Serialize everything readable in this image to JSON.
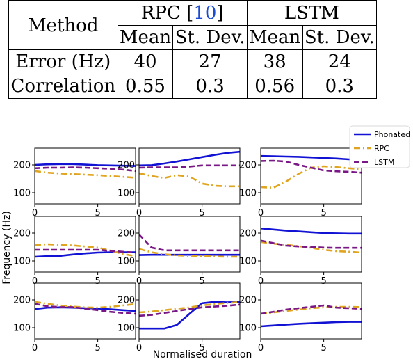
{
  "table": {
    "method_label": "Method",
    "groups": [
      {
        "name": "RPC [",
        "ref": "10",
        "suffix": "]"
      },
      {
        "name": "LSTM",
        "ref": "",
        "suffix": ""
      }
    ],
    "subheaders": [
      "Mean",
      "St. Dev.",
      "Mean",
      "St. Dev."
    ],
    "rows": [
      {
        "label": "Error (Hz)",
        "values": [
          "40",
          "27",
          "38",
          "24"
        ]
      },
      {
        "label": "Correlation",
        "values": [
          "0.55",
          "0.3",
          "0.56",
          "0.3"
        ]
      }
    ]
  },
  "chart_data": {
    "type": "line",
    "layout": "3x3 small multiples",
    "xlabel": "Normalised duration",
    "ylabel": "Frequency (Hz)",
    "xlim": [
      0,
      8
    ],
    "xticks": [
      0,
      5
    ],
    "yticks": [
      100,
      200
    ],
    "legend": {
      "placement": "top-right",
      "entries": [
        {
          "name": "Phonated",
          "color": "#1212d4",
          "dash": "solid"
        },
        {
          "name": "RPC",
          "color": "#e0a520",
          "dash": "dashdot"
        },
        {
          "name": "LSTM",
          "color": "#7a1786",
          "dash": "dashed"
        }
      ]
    },
    "panels": [
      {
        "ylim": [
          60,
          260
        ],
        "x": [
          0,
          1,
          2,
          3,
          4,
          5,
          6,
          7,
          8
        ],
        "series": {
          "Phonated": [
            200,
            202,
            203,
            203,
            201,
            199,
            198,
            197,
            196
          ],
          "RPC": [
            178,
            172,
            169,
            167,
            165,
            163,
            160,
            157,
            154
          ],
          "LSTM": [
            188,
            190,
            190,
            191,
            190,
            188,
            186,
            183,
            178
          ]
        }
      },
      {
        "ylim": [
          60,
          260
        ],
        "x": [
          0,
          1,
          2,
          3,
          4,
          5,
          6,
          7,
          8
        ],
        "series": {
          "Phonated": [
            198,
            199,
            205,
            212,
            220,
            228,
            236,
            243,
            247
          ],
          "RPC": [
            170,
            160,
            153,
            163,
            158,
            133,
            125,
            123,
            123
          ],
          "LSTM": [
            190,
            191,
            191,
            191,
            194,
            198,
            198,
            198,
            198
          ]
        }
      },
      {
        "ylim": [
          60,
          260
        ],
        "x": [
          0,
          1,
          2,
          3,
          4,
          5,
          6,
          7,
          8
        ],
        "series": {
          "Phonated": [
            232,
            231,
            230,
            229,
            227,
            225,
            223,
            220,
            218
          ],
          "RPC": [
            120,
            118,
            140,
            168,
            190,
            195,
            192,
            188,
            184
          ],
          "LSTM": [
            214,
            215,
            212,
            200,
            190,
            180,
            177,
            175,
            172
          ]
        }
      },
      {
        "ylim": [
          60,
          260
        ],
        "x": [
          0,
          1,
          2,
          3,
          4,
          5,
          6,
          7,
          8
        ],
        "series": {
          "Phonated": [
            115,
            117,
            118,
            123,
            127,
            130,
            131,
            131,
            131
          ],
          "RPC": [
            157,
            160,
            158,
            156,
            152,
            148,
            137,
            125,
            117
          ],
          "LSTM": [
            140,
            140,
            140,
            140,
            140,
            140,
            136,
            133,
            130
          ]
        }
      },
      {
        "ylim": [
          60,
          260
        ],
        "x": [
          0,
          1,
          2,
          3,
          4,
          5,
          6,
          7,
          8
        ],
        "series": {
          "Phonated": [
            121,
            122,
            122,
            122,
            122,
            122,
            122,
            122,
            122
          ],
          "RPC": [
            143,
            131,
            124,
            120,
            118,
            117,
            116,
            115,
            115
          ],
          "LSTM": [
            195,
            148,
            138,
            138,
            138,
            138,
            138,
            138,
            138
          ]
        }
      },
      {
        "ylim": [
          60,
          260
        ],
        "x": [
          0,
          1,
          2,
          3,
          4,
          5,
          6,
          7,
          8
        ],
        "series": {
          "Phonated": [
            217,
            213,
            209,
            206,
            203,
            200,
            199,
            198,
            198
          ],
          "RPC": [
            168,
            162,
            158,
            153,
            147,
            140,
            135,
            133,
            130
          ],
          "LSTM": [
            173,
            164,
            155,
            152,
            150,
            148,
            147,
            147,
            147
          ]
        }
      },
      {
        "ylim": [
          60,
          260
        ],
        "x": [
          0,
          1,
          2,
          3,
          4,
          5,
          6,
          7,
          8
        ],
        "series": {
          "Phonated": [
            167,
            172,
            173,
            172,
            170,
            169,
            166,
            163,
            160
          ],
          "RPC": [
            193,
            186,
            180,
            176,
            173,
            172,
            175,
            180,
            185
          ],
          "LSTM": [
            186,
            177,
            174,
            174,
            168,
            163,
            157,
            153,
            150
          ]
        }
      },
      {
        "ylim": [
          60,
          260
        ],
        "x": [
          0,
          1,
          2,
          3,
          4,
          5,
          6,
          7,
          8
        ],
        "series": {
          "Phonated": [
            97,
            97,
            97,
            110,
            150,
            188,
            193,
            191,
            193
          ],
          "RPC": [
            155,
            158,
            163,
            168,
            173,
            180,
            185,
            189,
            192
          ],
          "LSTM": [
            143,
            146,
            153,
            160,
            167,
            173,
            176,
            179,
            183
          ]
        }
      },
      {
        "ylim": [
          60,
          260
        ],
        "x": [
          0,
          1,
          2,
          3,
          4,
          5,
          6,
          7,
          8
        ],
        "series": {
          "Phonated": [
            105,
            108,
            111,
            114,
            116,
            118,
            120,
            121,
            121
          ],
          "RPC": [
            150,
            155,
            160,
            165,
            170,
            173,
            175,
            175,
            174
          ],
          "LSTM": [
            150,
            157,
            165,
            170,
            175,
            180,
            172,
            170,
            168
          ]
        }
      }
    ]
  }
}
